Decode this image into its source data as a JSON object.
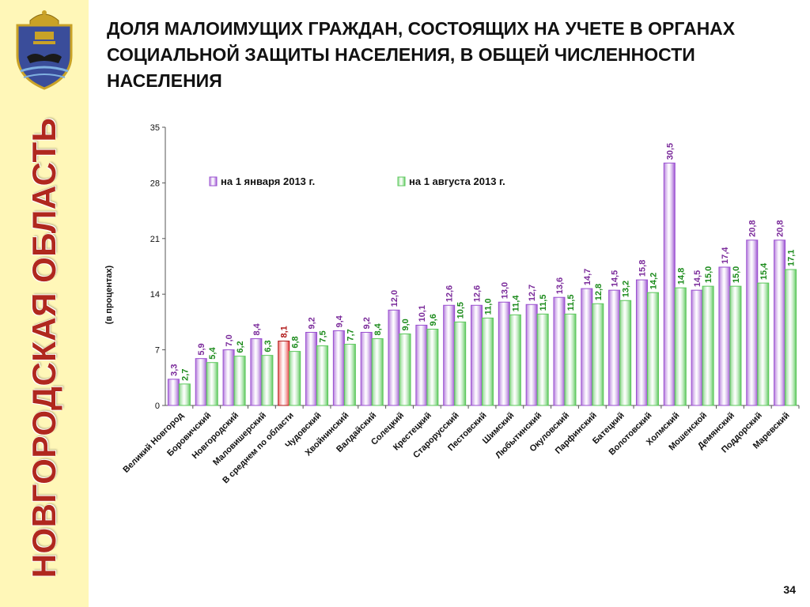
{
  "sidebar": {
    "region_label": "НОВГОРОДСКАЯ ОБЛАСТЬ",
    "emblem_icon": "coat-of-arms-icon"
  },
  "page": {
    "title": "ДОЛЯ МАЛОИМУЩИХ ГРАЖДАН, СОСТОЯЩИХ НА УЧЕТЕ В ОРГАНАХ СОЦИАЛЬНОЙ ЗАЩИТЫ НАСЕЛЕНИЯ, В ОБЩЕЙ ЧИСЛЕННОСТИ НАСЕЛЕНИЯ",
    "page_number": "34"
  },
  "colors": {
    "series1": "#9a4fd0",
    "series2": "#5cc85c",
    "highlight": "#e83a3a",
    "label1": "#7a2a9a",
    "label2": "#1a8a1a",
    "region_label": "#b0281e",
    "sidebar_bg": "#fff7b8"
  },
  "chart_data": {
    "type": "bar",
    "title": "",
    "xlabel": "",
    "ylabel": "(в процентах)",
    "ylim": [
      0,
      35
    ],
    "yticks": [
      0,
      7,
      14,
      21,
      28,
      35
    ],
    "legend_position": "top-center",
    "grid": false,
    "highlighted_category": "В среднем по области",
    "categories": [
      "Великий Новгород",
      "Боровичский",
      "Новгородский",
      "Маловишерский",
      "В среднем по области",
      "Чудовский",
      "Хвойнинский",
      "Валдайский",
      "Солецкий",
      "Крестецкий",
      "Старорусский",
      "Пестовский",
      "Шимский",
      "Любытинский",
      "Окуловский",
      "Парфинский",
      "Батецкий",
      "Волотовский",
      "Холмский",
      "Мошенской",
      "Демянский",
      "Поддорский",
      "Маревский"
    ],
    "series": [
      {
        "name": "на 1 января 2013 г.",
        "values": [
          3.3,
          5.9,
          7.0,
          8.4,
          8.1,
          9.2,
          9.4,
          9.2,
          12.0,
          10.1,
          12.6,
          12.6,
          13.0,
          12.7,
          13.6,
          14.7,
          14.5,
          15.8,
          30.5,
          14.5,
          17.4,
          20.8,
          20.8
        ],
        "labels": [
          "3,3",
          "5,9",
          "7,0",
          "8,4",
          "8,1",
          "9,2",
          "9,4",
          "9,2",
          "12,0",
          "10,1",
          "12,6",
          "12,6",
          "13,0",
          "12,7",
          "13,6",
          "14,7",
          "14,5",
          "15,8",
          "30,5",
          "14,5",
          "17,4",
          "20,8",
          "20,8"
        ]
      },
      {
        "name": "на 1 августа 2013 г.",
        "values": [
          2.7,
          5.4,
          6.2,
          6.3,
          6.8,
          7.5,
          7.7,
          8.4,
          9.0,
          9.6,
          10.5,
          11.0,
          11.4,
          11.5,
          11.5,
          12.8,
          13.2,
          14.2,
          14.8,
          15.0,
          15.0,
          15.4,
          17.1
        ],
        "labels": [
          "2,7",
          "5,4",
          "6,2",
          "6,3",
          "6,8",
          "7,5",
          "7,7",
          "8,4",
          "9,0",
          "9,6",
          "10,5",
          "11,0",
          "11,4",
          "11,5",
          "11,5",
          "12,8",
          "13,2",
          "14,2",
          "14,8",
          "15,0",
          "15,0",
          "15,4",
          "17,1"
        ]
      }
    ]
  }
}
